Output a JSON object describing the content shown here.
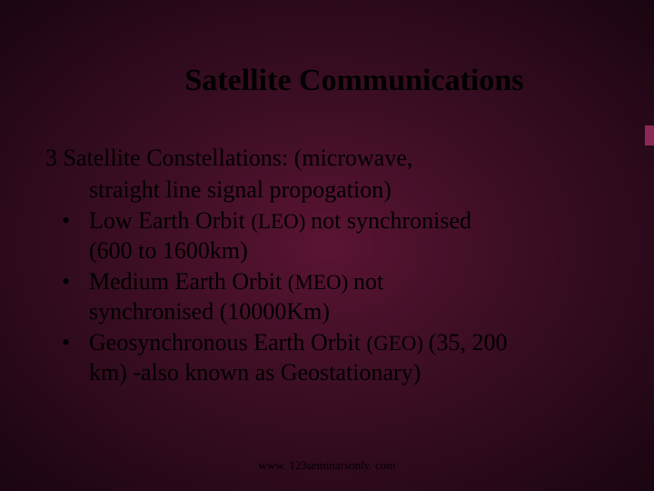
{
  "slide": {
    "title": "Satellite Communications",
    "intro_line1": "3 Satellite Constellations: (microwave,",
    "intro_line2": "straight line signal propogation)",
    "bullets": [
      {
        "marker": "•",
        "line1_part1": "Low Earth Orbit ",
        "line1_small": "(LEO) ",
        "line1_part2": "not synchronised",
        "line2": "(600 to 1600km)"
      },
      {
        "marker": "•",
        "line1_part1": "Medium Earth Orbit  ",
        "line1_small": "(MEO) ",
        "line1_part2": "not",
        "line2": "synchronised (10000Km)"
      },
      {
        "marker": "•",
        "line1_part1": "Geosynchronous Earth Orbit ",
        "line1_small": "(GEO) ",
        "line1_part2": "(35, 200",
        "line2": "km) -also known as Geostationary)"
      }
    ],
    "footer": "www. 123seminarsonly. com"
  },
  "colors": {
    "background_center": "#5a1433",
    "background_mid": "#3d0e24",
    "background_edge": "#1a0511",
    "text": "#000000",
    "accent": "#8b2956"
  },
  "typography": {
    "font_family": "Times New Roman",
    "title_size": 34,
    "body_size": 26,
    "small_size": 23,
    "footer_size": 13
  }
}
